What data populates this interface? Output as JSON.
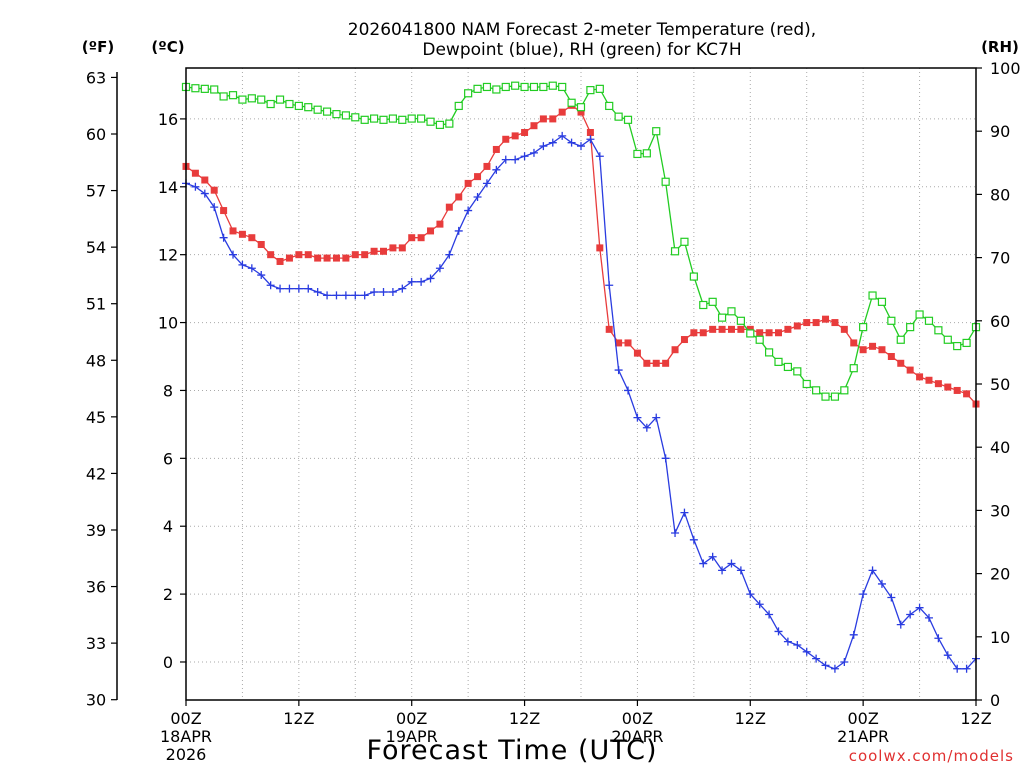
{
  "chart_data": {
    "type": "line",
    "title": [
      "2026041800 NAM Forecast 2-meter Temperature (red),",
      "Dewpoint (blue), RH (green) for KC7H"
    ],
    "xlabel": "Forecast Time (UTC)",
    "credit": "coolwx.com/models",
    "units": {
      "fahrenheit": "(ºF)",
      "celsius": "(ºC)",
      "rh": "(RH)"
    },
    "x_range_hours": [
      0,
      84
    ],
    "x_ticks": [
      {
        "hour": 0,
        "lines": [
          "00Z",
          "18APR",
          "2026"
        ]
      },
      {
        "hour": 12,
        "lines": [
          "12Z"
        ]
      },
      {
        "hour": 24,
        "lines": [
          "00Z",
          "19APR"
        ]
      },
      {
        "hour": 36,
        "lines": [
          "12Z"
        ]
      },
      {
        "hour": 48,
        "lines": [
          "00Z",
          "20APR"
        ]
      },
      {
        "hour": 60,
        "lines": [
          "12Z"
        ]
      },
      {
        "hour": 72,
        "lines": [
          "00Z",
          "21APR"
        ]
      },
      {
        "hour": 84,
        "lines": [
          "12Z"
        ]
      }
    ],
    "y_celsius_range": [
      -1.12,
      17.5
    ],
    "y_celsius_ticks": [
      "0",
      "2",
      "4",
      "6",
      "8",
      "10",
      "12",
      "14",
      "16"
    ],
    "y_fahrenheit_ticks": [
      "30",
      "33",
      "36",
      "39",
      "42",
      "45",
      "48",
      "51",
      "54",
      "57",
      "60",
      "63"
    ],
    "y_rh_range": [
      0,
      100
    ],
    "y_rh_ticks": [
      "0",
      "10",
      "20",
      "30",
      "40",
      "50",
      "60",
      "70",
      "80",
      "90",
      "100"
    ],
    "series": [
      {
        "name": "Temperature",
        "unit": "C",
        "color": "#e83c3c",
        "marker": "filled-square",
        "points": [
          [
            0,
            14.6
          ],
          [
            1,
            14.4
          ],
          [
            2,
            14.2
          ],
          [
            3,
            13.9
          ],
          [
            4,
            13.3
          ],
          [
            5,
            12.7
          ],
          [
            6,
            12.6
          ],
          [
            7,
            12.5
          ],
          [
            8,
            12.3
          ],
          [
            9,
            12.0
          ],
          [
            10,
            11.8
          ],
          [
            11,
            11.9
          ],
          [
            12,
            12.0
          ],
          [
            13,
            12.0
          ],
          [
            14,
            11.9
          ],
          [
            15,
            11.9
          ],
          [
            16,
            11.9
          ],
          [
            17,
            11.9
          ],
          [
            18,
            12.0
          ],
          [
            19,
            12.0
          ],
          [
            20,
            12.1
          ],
          [
            21,
            12.1
          ],
          [
            22,
            12.2
          ],
          [
            23,
            12.2
          ],
          [
            24,
            12.5
          ],
          [
            25,
            12.5
          ],
          [
            26,
            12.7
          ],
          [
            27,
            12.9
          ],
          [
            28,
            13.4
          ],
          [
            29,
            13.7
          ],
          [
            30,
            14.1
          ],
          [
            31,
            14.3
          ],
          [
            32,
            14.6
          ],
          [
            33,
            15.1
          ],
          [
            34,
            15.4
          ],
          [
            35,
            15.5
          ],
          [
            36,
            15.6
          ],
          [
            37,
            15.8
          ],
          [
            38,
            16.0
          ],
          [
            39,
            16.0
          ],
          [
            40,
            16.2
          ],
          [
            41,
            16.4
          ],
          [
            42,
            16.2
          ],
          [
            43,
            15.6
          ],
          [
            44,
            12.2
          ],
          [
            45,
            9.8
          ],
          [
            46,
            9.4
          ],
          [
            47,
            9.4
          ],
          [
            48,
            9.1
          ],
          [
            49,
            8.8
          ],
          [
            50,
            8.8
          ],
          [
            51,
            8.8
          ],
          [
            52,
            9.2
          ],
          [
            53,
            9.5
          ],
          [
            54,
            9.7
          ],
          [
            55,
            9.7
          ],
          [
            56,
            9.8
          ],
          [
            57,
            9.8
          ],
          [
            58,
            9.8
          ],
          [
            59,
            9.8
          ],
          [
            60,
            9.8
          ],
          [
            61,
            9.7
          ],
          [
            62,
            9.7
          ],
          [
            63,
            9.7
          ],
          [
            64,
            9.8
          ],
          [
            65,
            9.9
          ],
          [
            66,
            10.0
          ],
          [
            67,
            10.0
          ],
          [
            68,
            10.1
          ],
          [
            69,
            10.0
          ],
          [
            70,
            9.8
          ],
          [
            71,
            9.4
          ],
          [
            72,
            9.2
          ],
          [
            73,
            9.3
          ],
          [
            74,
            9.2
          ],
          [
            75,
            9.0
          ],
          [
            76,
            8.8
          ],
          [
            77,
            8.6
          ],
          [
            78,
            8.4
          ],
          [
            79,
            8.3
          ],
          [
            80,
            8.2
          ],
          [
            81,
            8.1
          ],
          [
            82,
            8.0
          ],
          [
            83,
            7.9
          ],
          [
            84,
            7.6
          ]
        ]
      },
      {
        "name": "Dewpoint",
        "unit": "C",
        "color": "#2a3ce0",
        "marker": "plus",
        "points": [
          [
            0,
            14.1
          ],
          [
            1,
            14.0
          ],
          [
            2,
            13.8
          ],
          [
            3,
            13.4
          ],
          [
            4,
            12.5
          ],
          [
            5,
            12.0
          ],
          [
            6,
            11.7
          ],
          [
            7,
            11.6
          ],
          [
            8,
            11.4
          ],
          [
            9,
            11.1
          ],
          [
            10,
            11.0
          ],
          [
            11,
            11.0
          ],
          [
            12,
            11.0
          ],
          [
            13,
            11.0
          ],
          [
            14,
            10.9
          ],
          [
            15,
            10.8
          ],
          [
            16,
            10.8
          ],
          [
            17,
            10.8
          ],
          [
            18,
            10.8
          ],
          [
            19,
            10.8
          ],
          [
            20,
            10.9
          ],
          [
            21,
            10.9
          ],
          [
            22,
            10.9
          ],
          [
            23,
            11.0
          ],
          [
            24,
            11.2
          ],
          [
            25,
            11.2
          ],
          [
            26,
            11.3
          ],
          [
            27,
            11.6
          ],
          [
            28,
            12.0
          ],
          [
            29,
            12.7
          ],
          [
            30,
            13.3
          ],
          [
            31,
            13.7
          ],
          [
            32,
            14.1
          ],
          [
            33,
            14.5
          ],
          [
            34,
            14.8
          ],
          [
            35,
            14.8
          ],
          [
            36,
            14.9
          ],
          [
            37,
            15.0
          ],
          [
            38,
            15.2
          ],
          [
            39,
            15.3
          ],
          [
            40,
            15.5
          ],
          [
            41,
            15.3
          ],
          [
            42,
            15.2
          ],
          [
            43,
            15.4
          ],
          [
            44,
            14.9
          ],
          [
            45,
            11.1
          ],
          [
            46,
            8.6
          ],
          [
            47,
            8.0
          ],
          [
            48,
            7.2
          ],
          [
            49,
            6.9
          ],
          [
            50,
            7.2
          ],
          [
            51,
            6.0
          ],
          [
            52,
            3.8
          ],
          [
            53,
            4.4
          ],
          [
            54,
            3.6
          ],
          [
            55,
            2.9
          ],
          [
            56,
            3.1
          ],
          [
            57,
            2.7
          ],
          [
            58,
            2.9
          ],
          [
            59,
            2.7
          ],
          [
            60,
            2.0
          ],
          [
            61,
            1.7
          ],
          [
            62,
            1.4
          ],
          [
            63,
            0.9
          ],
          [
            64,
            0.6
          ],
          [
            65,
            0.5
          ],
          [
            66,
            0.3
          ],
          [
            67,
            0.1
          ],
          [
            68,
            -0.1
          ],
          [
            69,
            -0.2
          ],
          [
            70,
            0.0
          ],
          [
            71,
            0.8
          ],
          [
            72,
            2.0
          ],
          [
            73,
            2.7
          ],
          [
            74,
            2.3
          ],
          [
            75,
            1.9
          ],
          [
            76,
            1.1
          ],
          [
            77,
            1.4
          ],
          [
            78,
            1.6
          ],
          [
            79,
            1.3
          ],
          [
            80,
            0.7
          ],
          [
            81,
            0.2
          ],
          [
            82,
            -0.2
          ],
          [
            83,
            -0.2
          ],
          [
            84,
            0.1
          ]
        ]
      },
      {
        "name": "RH",
        "unit": "%",
        "color": "#22cc22",
        "marker": "hollow-square",
        "points": [
          [
            0,
            97
          ],
          [
            1,
            96.8
          ],
          [
            2,
            96.7
          ],
          [
            3,
            96.6
          ],
          [
            4,
            95.5
          ],
          [
            5,
            95.7
          ],
          [
            6,
            95
          ],
          [
            7,
            95.2
          ],
          [
            8,
            95
          ],
          [
            9,
            94.3
          ],
          [
            10,
            95
          ],
          [
            11,
            94.3
          ],
          [
            12,
            94
          ],
          [
            13,
            93.8
          ],
          [
            14,
            93.4
          ],
          [
            15,
            93.1
          ],
          [
            16,
            92.7
          ],
          [
            17,
            92.5
          ],
          [
            18,
            92.2
          ],
          [
            19,
            91.8
          ],
          [
            20,
            92
          ],
          [
            21,
            91.8
          ],
          [
            22,
            92
          ],
          [
            23,
            91.8
          ],
          [
            24,
            92
          ],
          [
            25,
            92
          ],
          [
            26,
            91.5
          ],
          [
            27,
            91
          ],
          [
            28,
            91.2
          ],
          [
            29,
            94
          ],
          [
            30,
            96
          ],
          [
            31,
            96.7
          ],
          [
            32,
            97
          ],
          [
            33,
            96.6
          ],
          [
            34,
            97
          ],
          [
            35,
            97.2
          ],
          [
            36,
            97
          ],
          [
            37,
            97
          ],
          [
            38,
            97
          ],
          [
            39,
            97.2
          ],
          [
            40,
            97
          ],
          [
            41,
            94.5
          ],
          [
            42,
            93.8
          ],
          [
            43,
            96.5
          ],
          [
            44,
            96.7
          ],
          [
            45,
            94
          ],
          [
            46,
            92.3
          ],
          [
            47,
            91.8
          ],
          [
            48,
            86.4
          ],
          [
            49,
            86.5
          ],
          [
            50,
            90
          ],
          [
            51,
            82
          ],
          [
            52,
            71
          ],
          [
            53,
            72.5
          ],
          [
            54,
            67
          ],
          [
            55,
            62.5
          ],
          [
            56,
            63.0
          ],
          [
            57,
            60.5
          ],
          [
            58,
            61.5
          ],
          [
            59,
            60
          ],
          [
            60,
            58
          ],
          [
            61,
            57
          ],
          [
            62,
            55
          ],
          [
            63,
            53.5
          ],
          [
            64,
            52.7
          ],
          [
            65,
            52
          ],
          [
            66,
            50
          ],
          [
            67,
            49
          ],
          [
            68,
            48
          ],
          [
            69,
            48
          ],
          [
            70,
            49
          ],
          [
            71,
            52.5
          ],
          [
            72,
            59
          ],
          [
            73,
            64
          ],
          [
            74,
            63
          ],
          [
            75,
            60
          ],
          [
            76,
            57
          ],
          [
            77,
            59
          ],
          [
            78,
            61
          ],
          [
            79,
            60
          ],
          [
            80,
            58.5
          ],
          [
            81,
            57
          ],
          [
            82,
            56
          ],
          [
            83,
            56.5
          ],
          [
            84,
            59
          ]
        ]
      }
    ]
  }
}
